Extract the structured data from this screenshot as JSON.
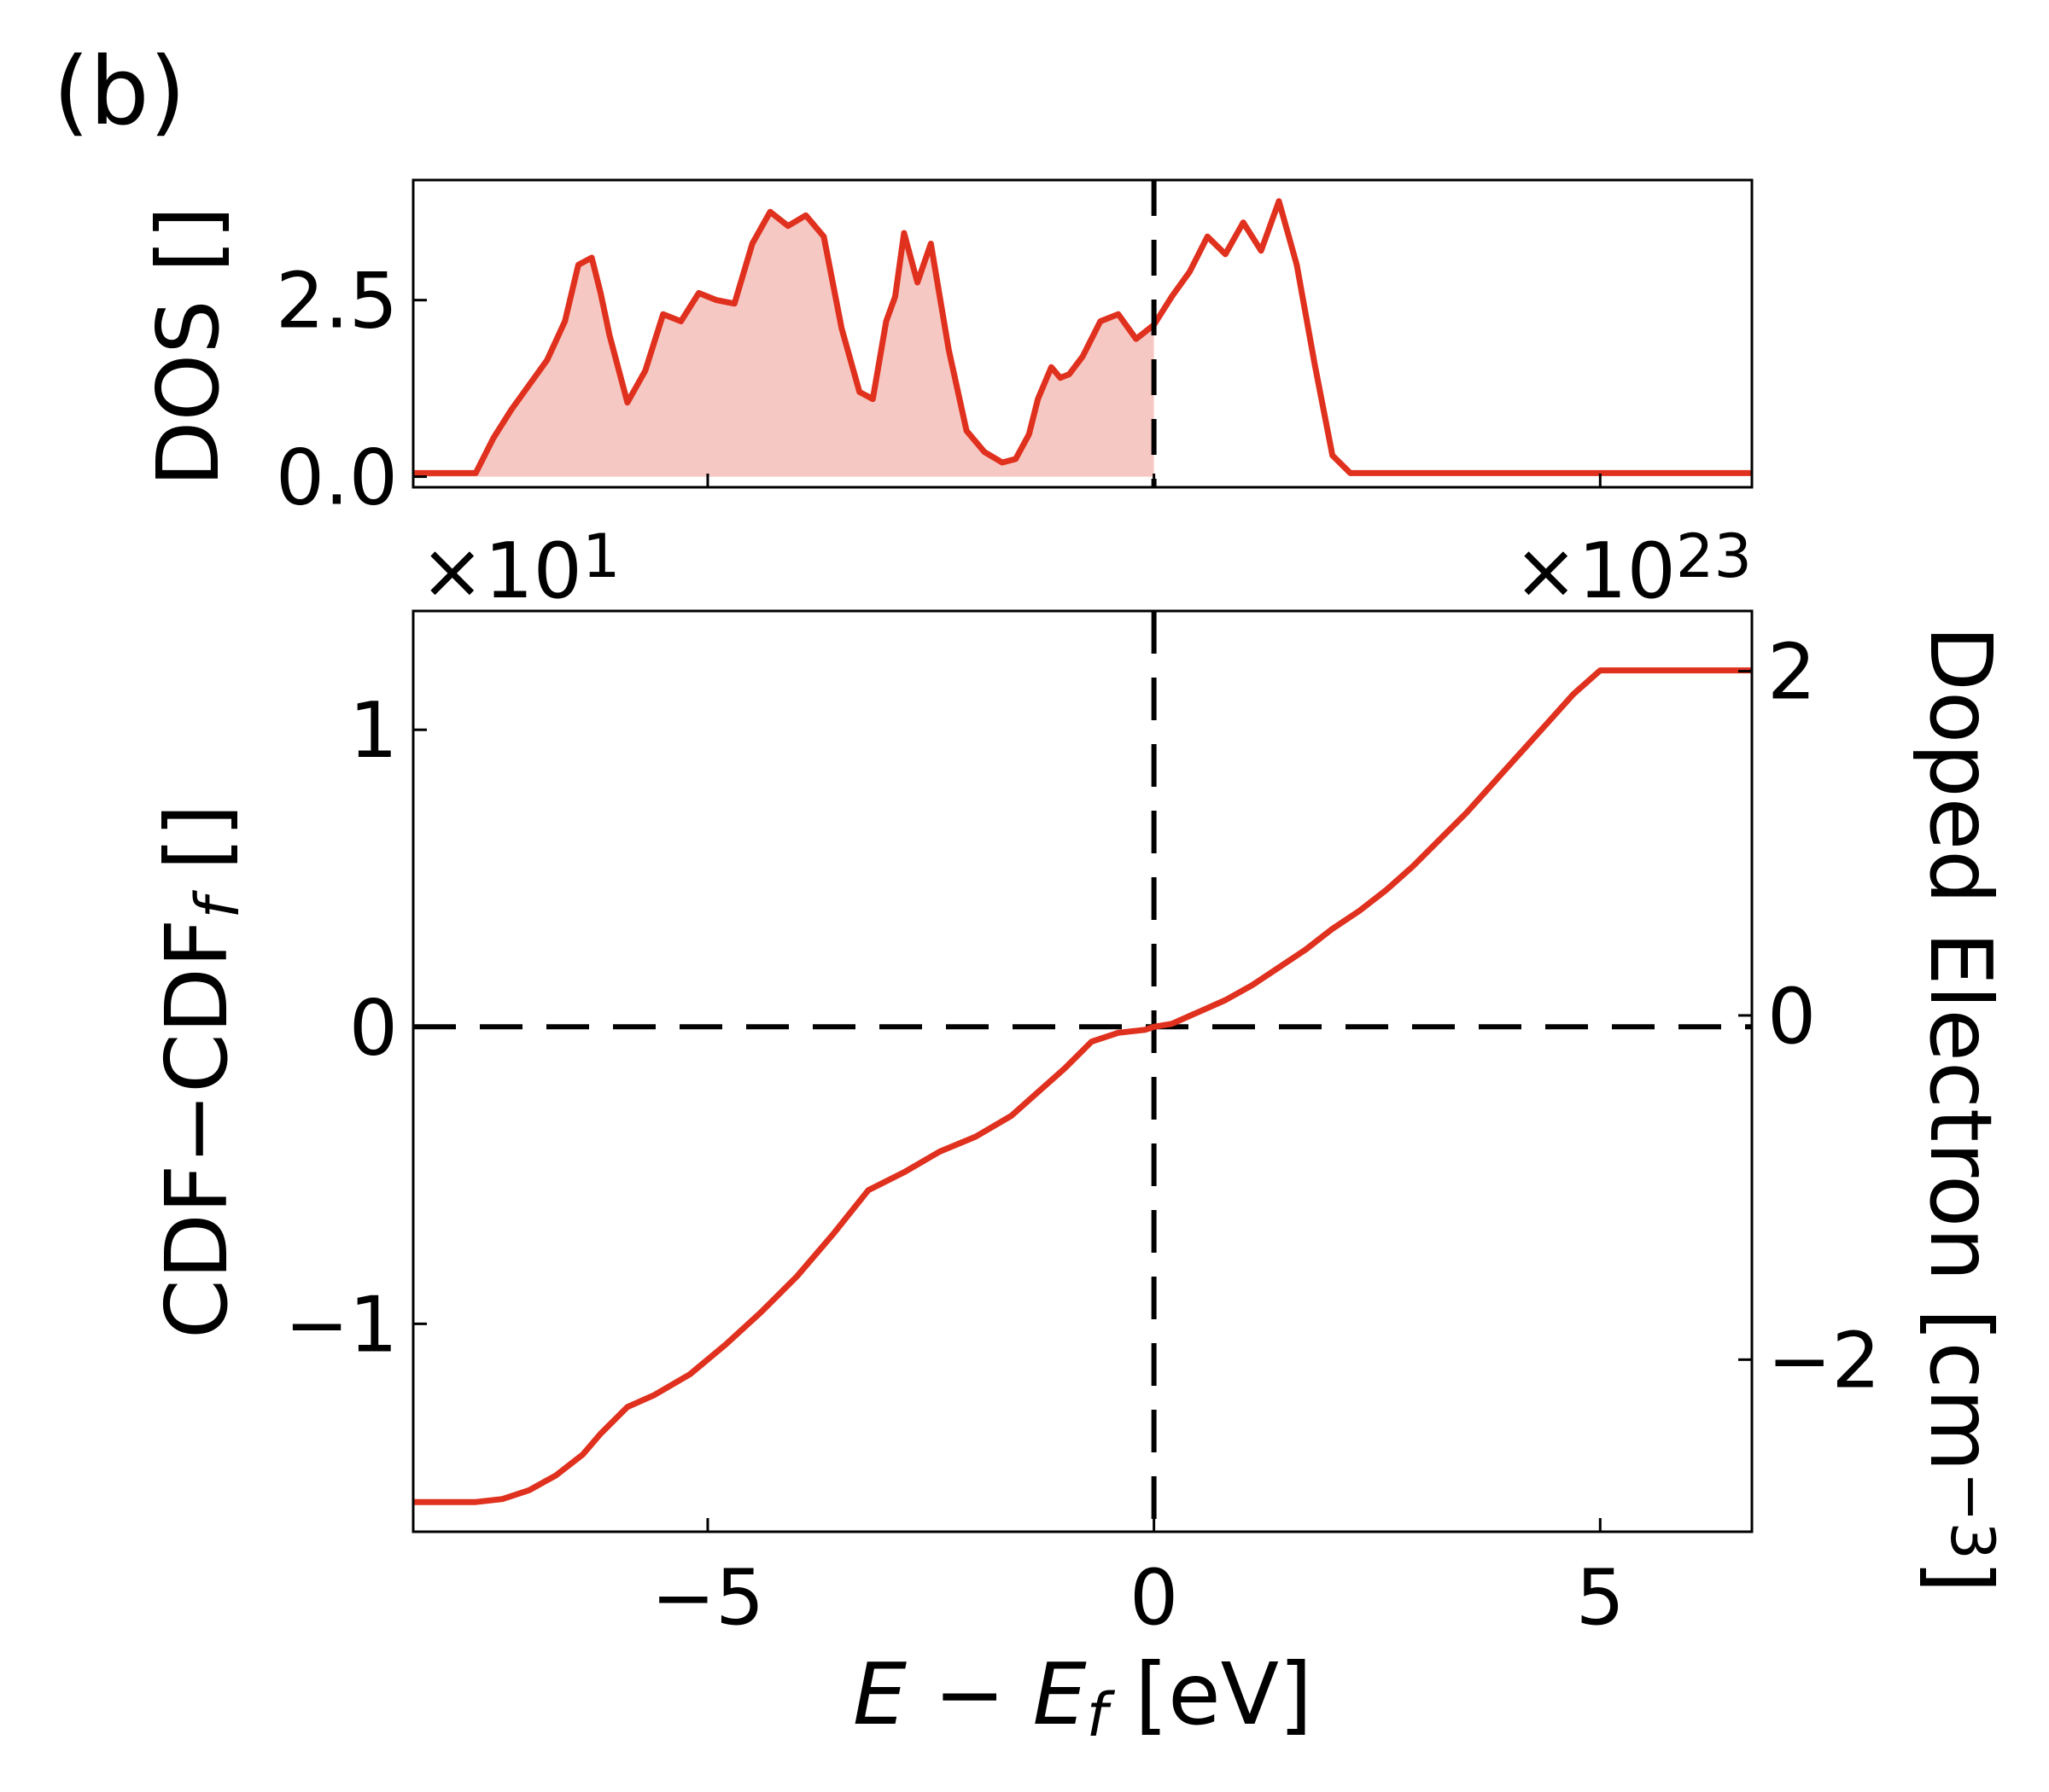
{
  "panel_label": "(b)",
  "colors": {
    "line": "#e0301e",
    "fill": "#f6c8c3",
    "axes": "#000000"
  },
  "chart_data": [
    {
      "type": "area",
      "ylabel": "DOS []",
      "xlim": [
        -8.3,
        6.7
      ],
      "ylim": [
        -0.15,
        4.2
      ],
      "y_offset_label": "×10^1",
      "fill_below_x": 0,
      "xticks": [
        -5,
        0,
        5
      ],
      "yticks": [
        0.0,
        2.5
      ],
      "ytick_labels": [
        "0.0",
        "2.5"
      ],
      "vline": 0,
      "x": [
        -8.3,
        -7.6,
        -7.4,
        -7.2,
        -7.0,
        -6.8,
        -6.6,
        -6.45,
        -6.3,
        -6.2,
        -6.1,
        -5.9,
        -5.7,
        -5.5,
        -5.3,
        -5.1,
        -4.9,
        -4.7,
        -4.5,
        -4.3,
        -4.1,
        -3.9,
        -3.7,
        -3.5,
        -3.3,
        -3.15,
        -3.0,
        -2.9,
        -2.8,
        -2.65,
        -2.5,
        -2.3,
        -2.1,
        -1.9,
        -1.7,
        -1.55,
        -1.4,
        -1.3,
        -1.15,
        -1.05,
        -0.95,
        -0.8,
        -0.6,
        -0.4,
        -0.2,
        0.0,
        0.2,
        0.4,
        0.6,
        0.8,
        1.0,
        1.2,
        1.4,
        1.6,
        1.8,
        2.0,
        2.2,
        2.4,
        2.6,
        2.8,
        3.0,
        3.15,
        3.3,
        3.45,
        3.6,
        3.75,
        3.9,
        4.05,
        4.2,
        4.35,
        4.5,
        4.7,
        4.9,
        5.1,
        5.3,
        6.7
      ],
      "y": [
        0.05,
        0.05,
        0.55,
        0.95,
        1.3,
        1.65,
        2.2,
        3.0,
        3.1,
        2.6,
        2.0,
        1.05,
        1.5,
        2.3,
        2.2,
        2.6,
        2.5,
        2.45,
        3.3,
        3.75,
        3.55,
        3.7,
        3.4,
        2.1,
        1.2,
        1.1,
        2.2,
        2.55,
        3.45,
        2.75,
        3.3,
        1.8,
        0.65,
        0.35,
        0.2,
        0.25,
        0.6,
        1.1,
        1.55,
        1.4,
        1.45,
        1.7,
        2.2,
        2.3,
        1.95,
        2.15,
        2.55,
        2.9,
        3.4,
        3.15,
        3.6,
        3.2,
        3.9,
        3.0,
        1.6,
        0.3,
        0.05,
        0.05,
        0.05,
        0.05,
        0.05,
        0.05,
        0.05,
        0.05,
        0.05,
        0.05,
        0.05,
        0.05,
        0.05,
        0.05,
        0.05,
        0.05,
        0.05,
        0.05,
        0.05,
        0.05
      ]
    },
    {
      "type": "line",
      "xlabel": "E − E_f [eV]",
      "ylabel": "CDF−CDF_f []",
      "ylabel_right": "Doped Electron [cm^−3]",
      "xlim": [
        -8.3,
        6.7
      ],
      "ylim": [
        -1.7,
        1.4
      ],
      "y_right_lim": [
        -3.0,
        2.35
      ],
      "y_offset_label": "×10^23",
      "xticks": [
        -5,
        0,
        5
      ],
      "xtick_labels": [
        "−5",
        "0",
        "5"
      ],
      "yticks": [
        -1,
        0,
        1
      ],
      "ytick_labels": [
        "−1",
        "0",
        "1"
      ],
      "yticks_right": [
        -2,
        0,
        2
      ],
      "ytick_right_labels": [
        "−2",
        "0",
        "2"
      ],
      "vline": 0,
      "hline": 0,
      "x": [
        -8.3,
        -7.6,
        -7.3,
        -7.0,
        -6.7,
        -6.4,
        -6.2,
        -5.9,
        -5.6,
        -5.2,
        -4.8,
        -4.4,
        -4.0,
        -3.6,
        -3.2,
        -2.8,
        -2.4,
        -2.0,
        -1.6,
        -1.3,
        -1.0,
        -0.7,
        -0.4,
        -0.1,
        0.0,
        0.2,
        0.5,
        0.8,
        1.1,
        1.4,
        1.7,
        2.0,
        2.3,
        2.6,
        2.9,
        3.2,
        3.5,
        3.8,
        4.1,
        4.4,
        4.7,
        5.0,
        5.3,
        6.7
      ],
      "y": [
        -1.6,
        -1.6,
        -1.59,
        -1.56,
        -1.51,
        -1.44,
        -1.37,
        -1.28,
        -1.24,
        -1.17,
        -1.07,
        -0.96,
        -0.84,
        -0.7,
        -0.55,
        -0.49,
        -0.42,
        -0.37,
        -0.3,
        -0.22,
        -0.14,
        -0.05,
        -0.02,
        -0.01,
        0.0,
        0.01,
        0.05,
        0.09,
        0.14,
        0.2,
        0.26,
        0.33,
        0.39,
        0.46,
        0.54,
        0.63,
        0.72,
        0.82,
        0.92,
        1.02,
        1.12,
        1.2,
        1.2,
        1.2
      ]
    }
  ]
}
